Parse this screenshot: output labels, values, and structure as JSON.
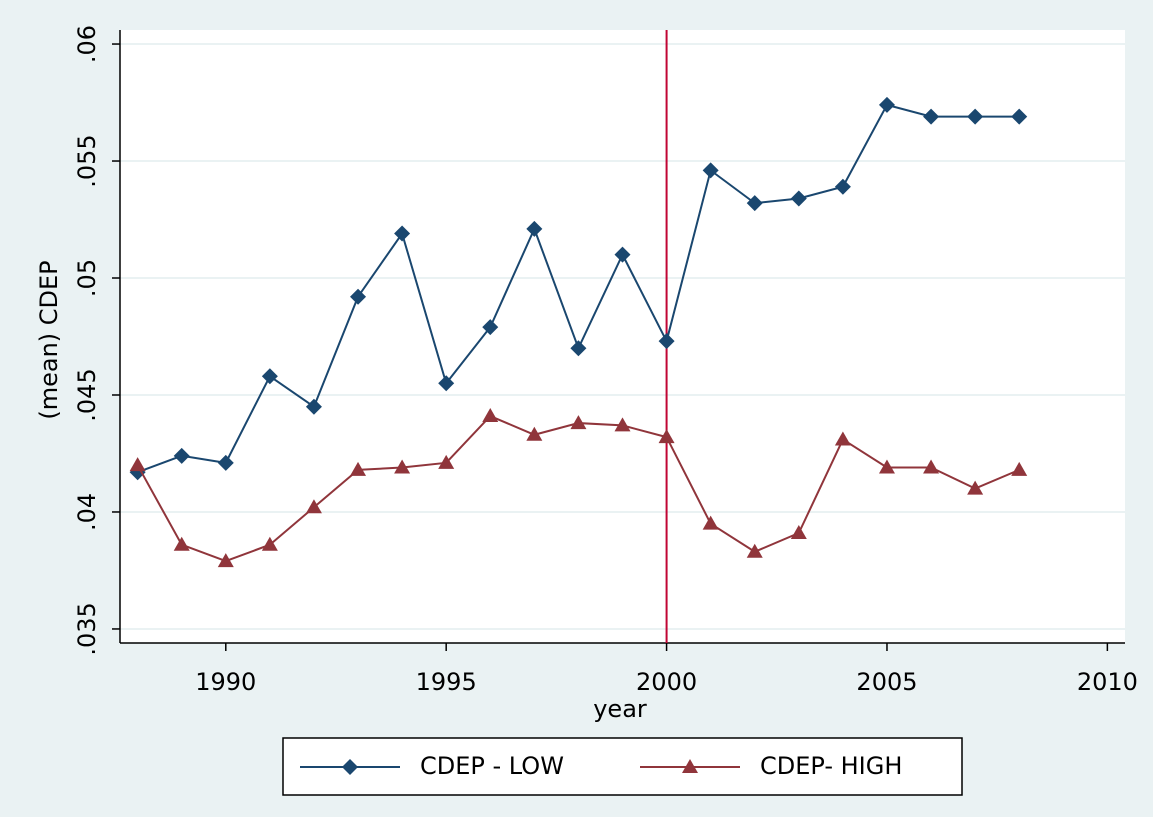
{
  "chart_data": {
    "type": "line",
    "x": [
      1988,
      1989,
      1990,
      1991,
      1992,
      1993,
      1994,
      1995,
      1996,
      1997,
      1998,
      1999,
      2000,
      2001,
      2002,
      2003,
      2004,
      2005,
      2006,
      2007,
      2008
    ],
    "series": [
      {
        "name": "CDEP - LOW",
        "color": "#1a476f",
        "marker": "diamond",
        "values": [
          0.0417,
          0.0424,
          0.0421,
          0.0458,
          0.0445,
          0.0492,
          0.0519,
          0.0455,
          0.0479,
          0.0521,
          0.047,
          0.051,
          0.0473,
          0.0546,
          0.0532,
          0.0534,
          0.0539,
          0.0574,
          0.0569,
          0.0569,
          0.0569
        ]
      },
      {
        "name": "CDEP- HIGH",
        "color": "#90353b",
        "marker": "triangle",
        "values": [
          0.042,
          0.0386,
          0.0379,
          0.0386,
          0.0402,
          0.0418,
          0.0419,
          0.0421,
          0.0441,
          0.0433,
          0.0438,
          0.0437,
          0.0432,
          0.0395,
          0.0383,
          0.0391,
          0.0431,
          0.0419,
          0.0419,
          0.041,
          0.0418
        ]
      }
    ],
    "xlabel": "year",
    "ylabel": "(mean) CDEP",
    "xlim": [
      1987.6,
      2010.4
    ],
    "xticks": [
      1990,
      1995,
      2000,
      2005,
      2010
    ],
    "ylim": [
      0.0344,
      0.0606
    ],
    "yticks": [
      {
        "value": 0.035,
        "label": ".035"
      },
      {
        "value": 0.04,
        "label": ".04"
      },
      {
        "value": 0.045,
        "label": ".045"
      },
      {
        "value": 0.05,
        "label": ".05"
      },
      {
        "value": 0.055,
        "label": ".055"
      },
      {
        "value": 0.06,
        "label": ".06"
      }
    ],
    "grid": true,
    "vline": {
      "value": 2000,
      "color": "#c10534"
    }
  }
}
